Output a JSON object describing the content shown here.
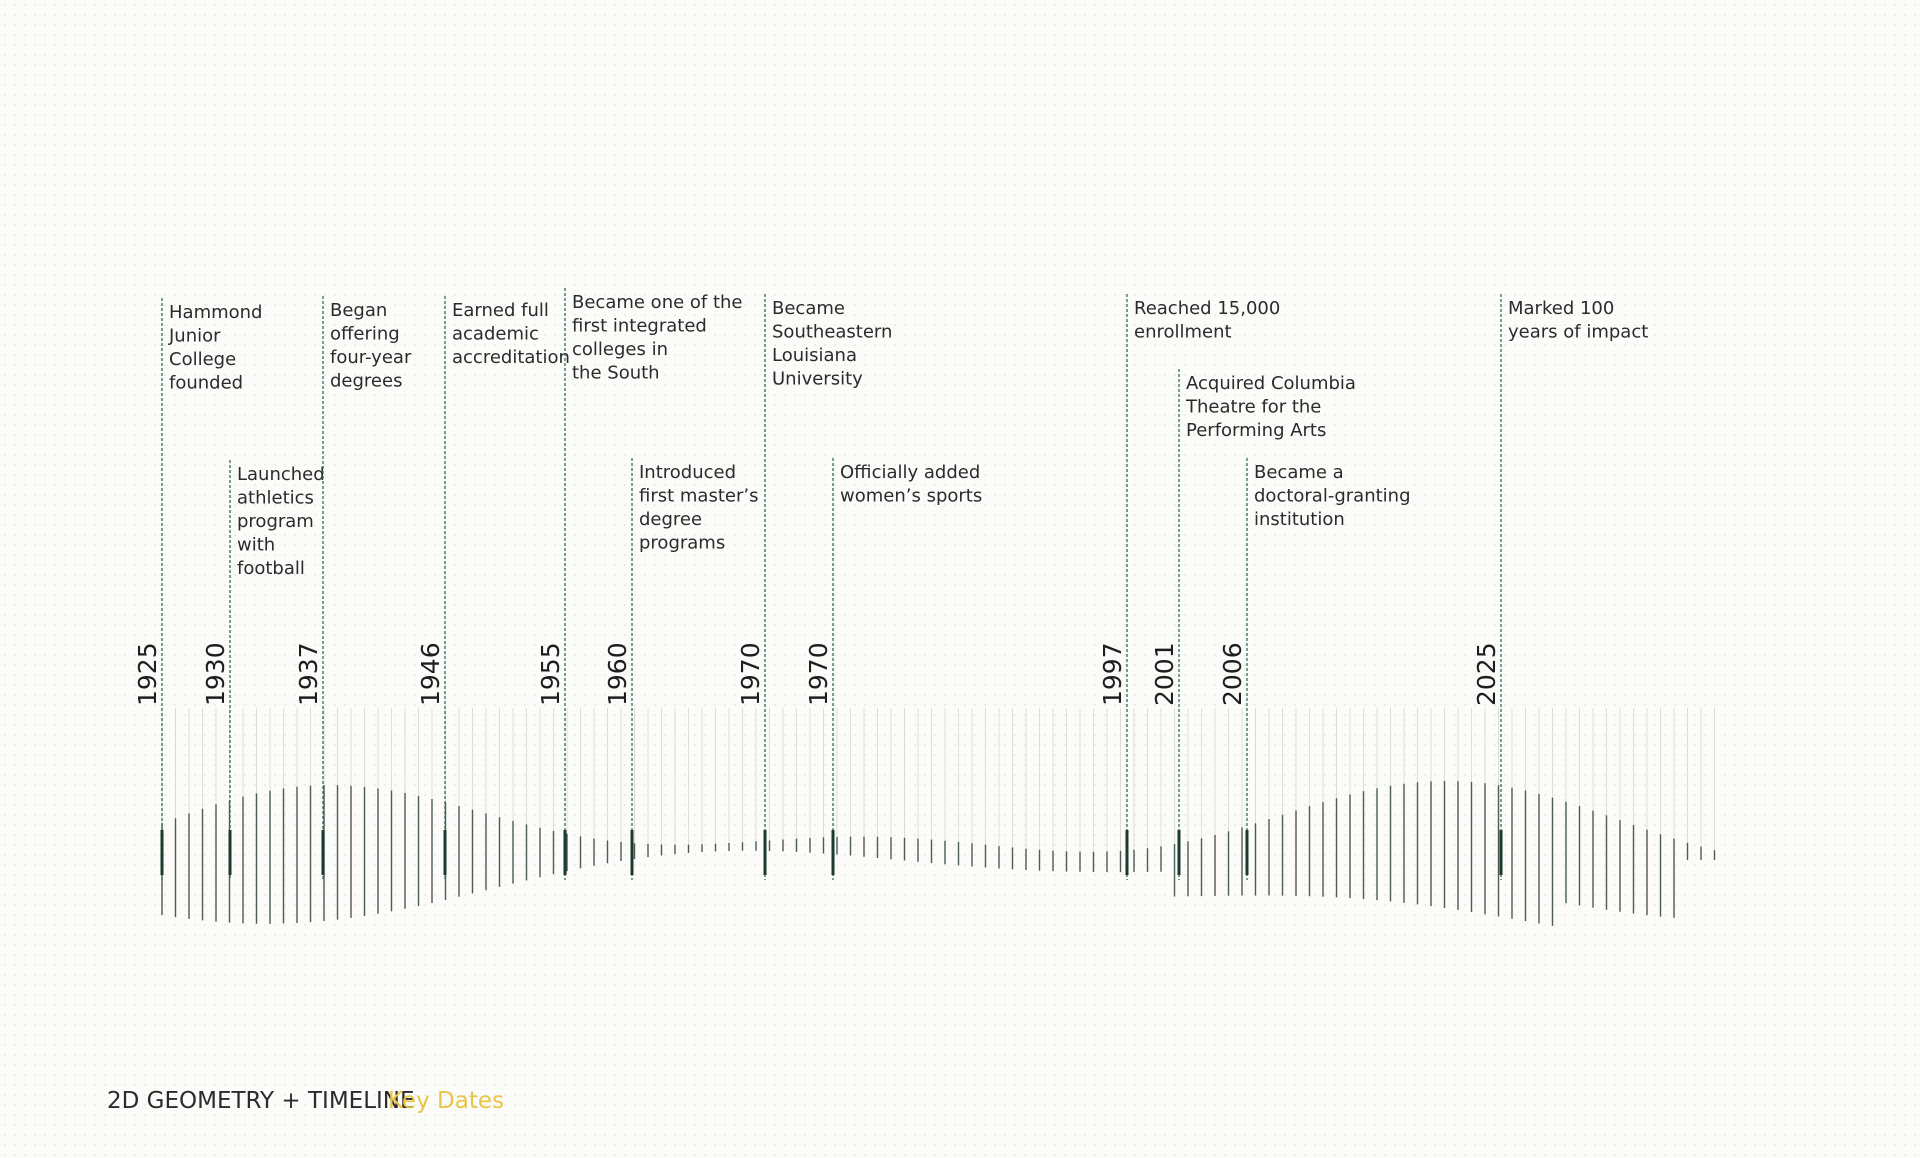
{
  "events": [
    {
      "year": 1925,
      "lines": [
        "Hammond",
        "Junior",
        "College",
        "founded"
      ]
    },
    {
      "year": 1930,
      "lines": [
        "Launched",
        "athletics",
        "program",
        "with",
        "football"
      ]
    },
    {
      "year": 1937,
      "lines": [
        "Began",
        "offering",
        "four-year",
        "degrees"
      ]
    },
    {
      "year": 1946,
      "lines": [
        "Earned full",
        "academic",
        "accreditation"
      ]
    },
    {
      "year": 1955,
      "lines": [
        "Became one of the",
        "first integrated",
        "colleges in",
        "the South"
      ]
    },
    {
      "year": 1960,
      "lines": [
        "Introduced",
        "first master’s",
        "degree",
        "programs"
      ]
    },
    {
      "year": 1970,
      "lines": [
        "Became",
        "Southeastern",
        "Louisiana",
        "University"
      ]
    },
    {
      "year": 1970,
      "lines": [
        "Officially added",
        "women’s sports"
      ]
    },
    {
      "year": 1997,
      "lines": [
        "Reached 15,000",
        "enrollment"
      ]
    },
    {
      "year": 2001,
      "lines": [
        "Acquired Columbia",
        "Theatre for the",
        "Performing Arts"
      ]
    },
    {
      "year": 2006,
      "lines": [
        "Became a",
        "doctoral-granting",
        "institution"
      ]
    },
    {
      "year": 2025,
      "lines": [
        "Marked 100",
        "years of impact"
      ]
    }
  ],
  "footer": {
    "title": "2D GEOMETRY + TIMELINE",
    "subtitle": "Key Dates"
  }
}
